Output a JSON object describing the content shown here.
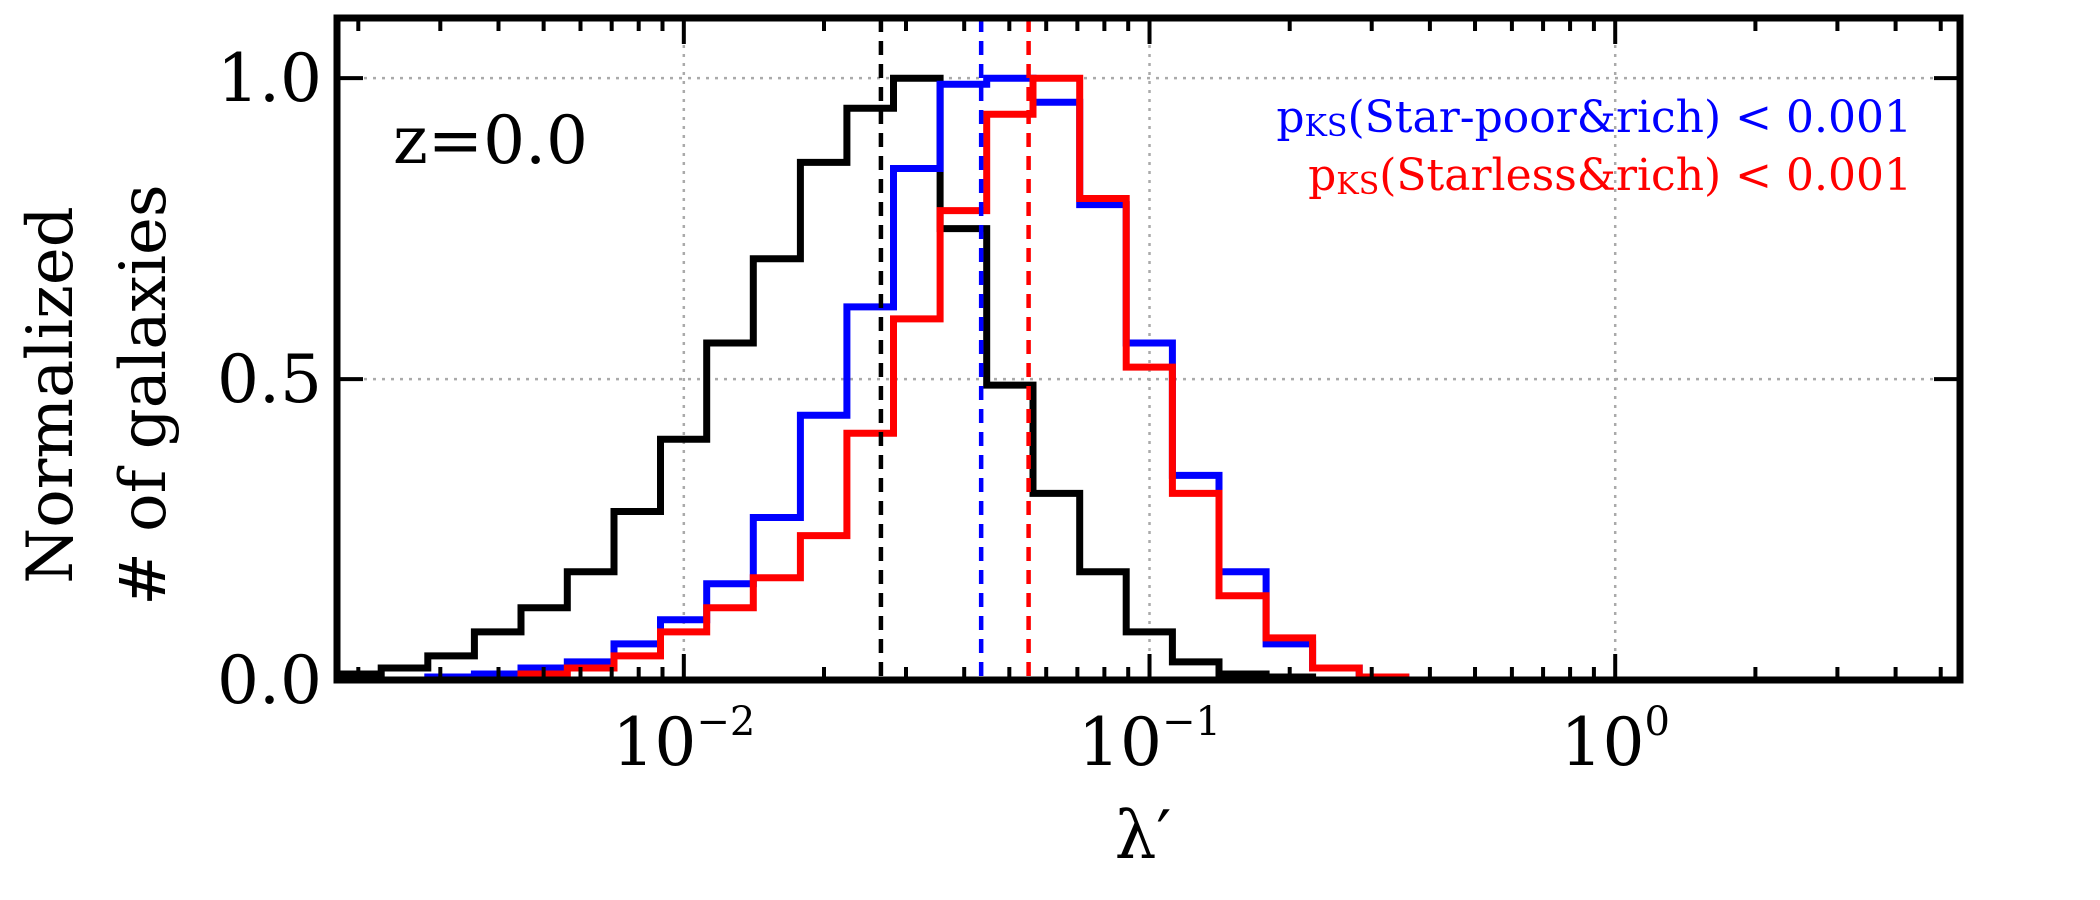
{
  "chart_data": {
    "type": "histogram",
    "xlabel": "λ′",
    "ylabel_lines": [
      "Normalized",
      "# of galaxies"
    ],
    "x_scale": "log",
    "xlim": [
      0.0018,
      5.5
    ],
    "ylim": [
      0,
      1.1
    ],
    "x_ticks": [
      {
        "value": 0.01,
        "base": "10",
        "exp": "−2"
      },
      {
        "value": 0.1,
        "base": "10",
        "exp": "−1"
      },
      {
        "value": 1,
        "base": "10",
        "exp": "0"
      }
    ],
    "y_ticks": [
      {
        "value": 0.0,
        "label": "0.0"
      },
      {
        "value": 0.5,
        "label": "0.5"
      },
      {
        "value": 1.0,
        "label": "1.0"
      }
    ],
    "grid": true,
    "annotation": "z=0.0",
    "ks_labels": [
      {
        "prefix": "p",
        "sub": "KS",
        "text": "(Star-poor&rich) < 0.001",
        "color": "#0000ff"
      },
      {
        "prefix": "p",
        "sub": "KS",
        "text": "(Starless&rich) < 0.001",
        "color": "#ff0000"
      }
    ],
    "median_lines": [
      {
        "x": 0.0265,
        "color": "#000000"
      },
      {
        "x": 0.0435,
        "color": "#0000ff"
      },
      {
        "x": 0.055,
        "color": "#ff0000"
      }
    ],
    "bin_edges": [
      0.00178,
      0.00224,
      0.00282,
      0.00355,
      0.00447,
      0.00562,
      0.00708,
      0.00891,
      0.0112,
      0.0141,
      0.0178,
      0.0224,
      0.0282,
      0.0355,
      0.0447,
      0.0562,
      0.0708,
      0.0891,
      0.112,
      0.141,
      0.178,
      0.224,
      0.282,
      0.355,
      0.447,
      0.562,
      0.708,
      0.891,
      1.122,
      1.413
    ],
    "series": [
      {
        "color": "#000000",
        "values": [
          0.01,
          0.02,
          0.04,
          0.08,
          0.12,
          0.18,
          0.28,
          0.4,
          0.56,
          0.7,
          0.86,
          0.95,
          1.0,
          0.75,
          0.49,
          0.31,
          0.18,
          0.08,
          0.03,
          0.01,
          0.005,
          0.0,
          0.0,
          0.0,
          0.0,
          0.0,
          0.0,
          0.0,
          0.0
        ]
      },
      {
        "color": "#0000ff",
        "values": [
          0.0,
          0.0,
          0.005,
          0.01,
          0.02,
          0.03,
          0.06,
          0.1,
          0.16,
          0.27,
          0.44,
          0.62,
          0.85,
          0.99,
          1.0,
          0.96,
          0.79,
          0.56,
          0.34,
          0.18,
          0.06,
          0.02,
          0.005,
          0.0,
          0.0,
          0.0,
          0.0,
          0.0,
          0.0
        ]
      },
      {
        "color": "#ff0000",
        "values": [
          0.0,
          0.0,
          0.0,
          0.0,
          0.01,
          0.02,
          0.04,
          0.08,
          0.12,
          0.17,
          0.24,
          0.41,
          0.6,
          0.78,
          0.94,
          1.0,
          0.8,
          0.52,
          0.31,
          0.14,
          0.07,
          0.02,
          0.005,
          0.0,
          0.0,
          0.0,
          0.0,
          0.0,
          0.0
        ]
      }
    ]
  }
}
